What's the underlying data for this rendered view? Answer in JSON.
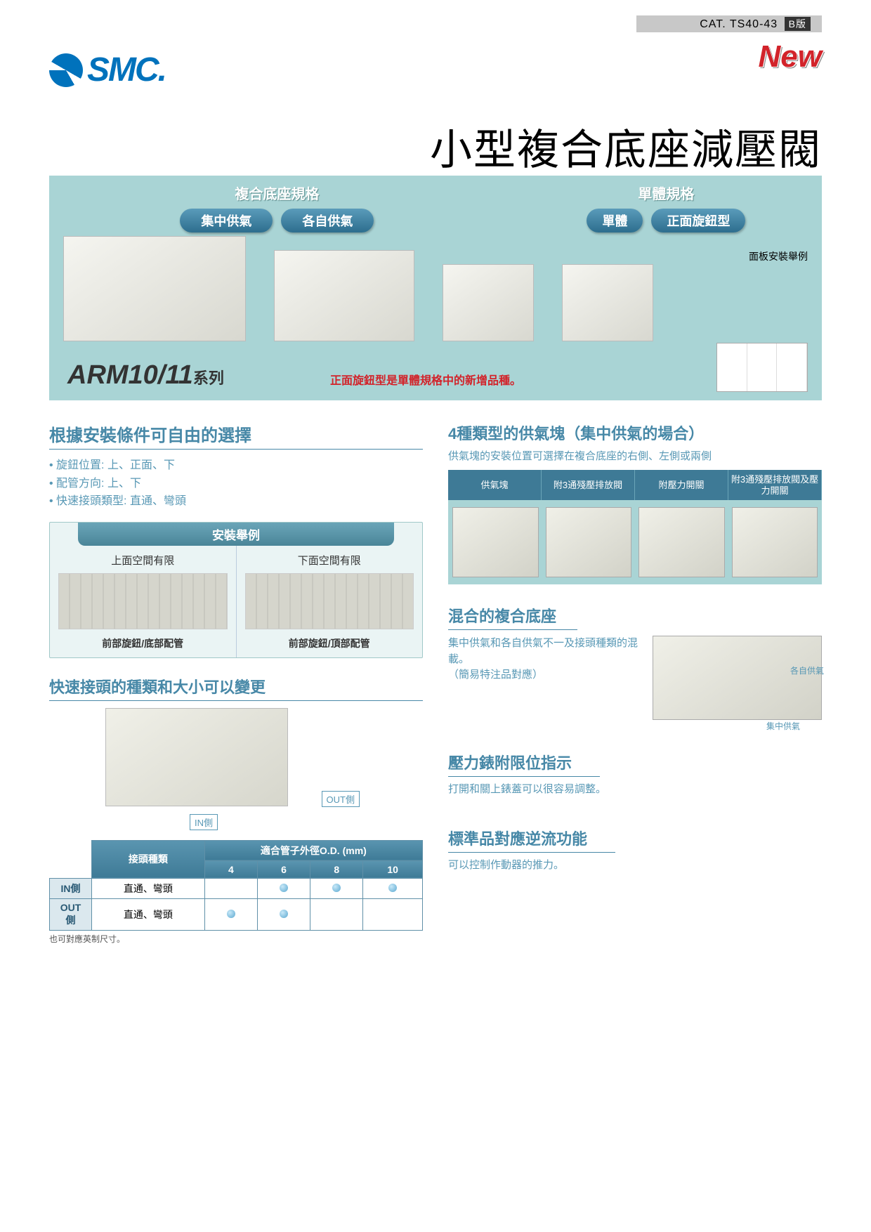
{
  "header": {
    "catalog": "CAT. TS40-43",
    "badge": "B版",
    "new": "New"
  },
  "logo": {
    "text": "SMC."
  },
  "title": "小型複合底座減壓閥",
  "panel": {
    "group_a": {
      "header": "複合底座規格",
      "pills": [
        "集中供氣",
        "各自供氣"
      ]
    },
    "group_b": {
      "header": "單體規格",
      "pills": [
        "單體",
        "正面旋鈕型"
      ]
    },
    "mini_label": "面板安裝舉例",
    "series": "ARM10/11",
    "series_suffix": "系列",
    "red_note": "正面旋鈕型是單體規格中的新增品種。"
  },
  "left": {
    "title1": "根據安裝條件可自由的選擇",
    "bullets": [
      "• 旋鈕位置: 上、正面、下",
      "• 配管方向: 上、下",
      "• 快速接頭類型: 直通、彎頭"
    ],
    "install_header": "安裝舉例",
    "inst_a_label": "上面空間有限",
    "inst_a_cap": "前部旋鈕/底部配管",
    "inst_b_label": "下面空間有限",
    "inst_b_cap": "前部旋鈕/頂部配管",
    "title2": "快速接頭的種類和大小可以變更",
    "out_label": "OUT側",
    "in_label": "IN側",
    "table": {
      "h1": "接頭種類",
      "h2": "適合管子外徑O.D. (mm)",
      "cols": [
        "4",
        "6",
        "8",
        "10"
      ],
      "rows": [
        {
          "head": "IN側",
          "type": "直通、彎頭",
          "dots": [
            false,
            true,
            true,
            true
          ]
        },
        {
          "head": "OUT側",
          "type": "直通、彎頭",
          "dots": [
            true,
            true,
            false,
            false
          ]
        }
      ],
      "note": "也可對應英制尺寸。"
    }
  },
  "right": {
    "title1": "4種類型的供氣塊（集中供氣的場合）",
    "sub1": "供氣塊的安裝位置可選擇在複合底座的右側、左側或兩側",
    "supply_cols": [
      "供氣塊",
      "附3通殘壓排放閥",
      "附壓力開關",
      "附3通殘壓排放閥及壓力開關"
    ],
    "title2": "混合的複合底座",
    "mix_text": "集中供氣和各自供氣不一及接頭種類的混載。\n（簡易特注品對應）",
    "mix_l1": "各自供氣",
    "mix_l2": "集中供氣",
    "title3": "壓力錶附限位指示",
    "sub3": "打開和關上錶蓋可以很容易調整。",
    "title4": "標準品對應逆流功能",
    "sub4": "可以控制作動器的推力。"
  },
  "colors": {
    "teal": "#4788a7",
    "teal_light": "#a9d4d5",
    "red": "#d2232a",
    "blue": "#0072bc"
  }
}
